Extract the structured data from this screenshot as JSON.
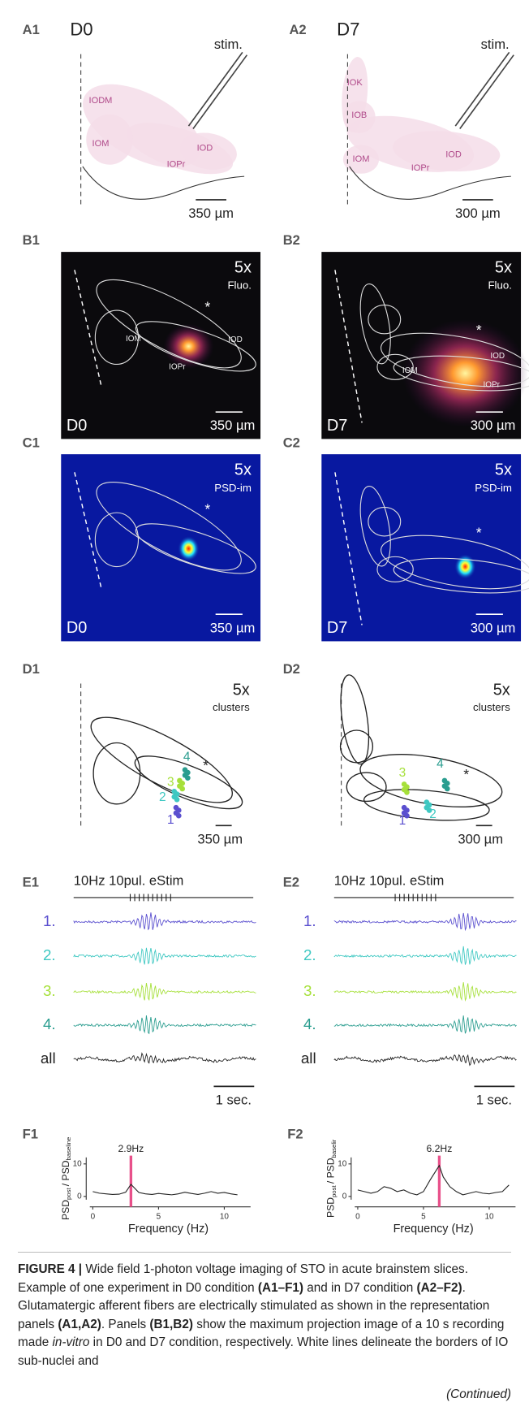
{
  "panels": {
    "A1": {
      "label": "A1",
      "condition": "D0",
      "stim": "stim.",
      "nuclei": [
        "IODM",
        "IOM",
        "IOPr",
        "IOD"
      ],
      "scale": "350 µm"
    },
    "A2": {
      "label": "A2",
      "condition": "D7",
      "stim": "stim.",
      "nuclei": [
        "IOK",
        "IOB",
        "IOM",
        "IOPr",
        "IOD"
      ],
      "scale": "300 µm"
    },
    "B1": {
      "label": "B1",
      "magnification": "5x",
      "mode": "Fluo.",
      "nuclei": [
        "IOM",
        "IOPr",
        "IOD"
      ],
      "star": "*",
      "condition": "D0",
      "scale": "350 µm"
    },
    "B2": {
      "label": "B2",
      "magnification": "5x",
      "mode": "Fluo.",
      "nuclei": [
        "IOM",
        "IOPr",
        "IOD"
      ],
      "star": "*",
      "condition": "D7",
      "scale": "300 µm"
    },
    "C1": {
      "label": "C1",
      "magnification": "5x",
      "mode": "PSD-im",
      "star": "*",
      "condition": "D0",
      "scale": "350 µm"
    },
    "C2": {
      "label": "C2",
      "magnification": "5x",
      "mode": "PSD-im",
      "star": "*",
      "condition": "D7",
      "scale": "300 µm"
    },
    "D1": {
      "label": "D1",
      "magnification": "5x",
      "mode": "clusters",
      "star": "*",
      "clusters": [
        "1",
        "2",
        "3",
        "4"
      ],
      "scale": "350 µm"
    },
    "D2": {
      "label": "D2",
      "magnification": "5x",
      "mode": "clusters",
      "star": "*",
      "clusters": [
        "1",
        "2",
        "3",
        "4"
      ],
      "scale": "300 µm"
    },
    "E1": {
      "label": "E1",
      "stimulus": "10Hz 10pul. eStim",
      "traces": [
        "1.",
        "2.",
        "3.",
        "4.",
        "all"
      ],
      "scale": "1 sec."
    },
    "E2": {
      "label": "E2",
      "stimulus": "10Hz 10pul. eStim",
      "traces": [
        "1.",
        "2.",
        "3.",
        "4.",
        "all"
      ],
      "scale": "1 sec."
    },
    "F1": {
      "label": "F1",
      "type": "line",
      "peak": 2.9,
      "peak_label": "2.9Hz",
      "marker_color": "#e8508a",
      "color": "#222222",
      "ylabel": [
        "PSD",
        "post",
        "/ PSD",
        "baseline"
      ],
      "xlabel": "Frequency (Hz)",
      "x": [
        0,
        0.5,
        1,
        1.5,
        2,
        2.5,
        2.9,
        3.5,
        4,
        4.5,
        5,
        5.5,
        6,
        6.5,
        7,
        7.5,
        8,
        8.5,
        9,
        9.5,
        10,
        10.5,
        11
      ],
      "values": [
        1.5,
        1.0,
        0.8,
        0.6,
        0.7,
        1.3,
        3.7,
        1.2,
        0.8,
        0.6,
        0.9,
        0.7,
        0.5,
        0.8,
        1.3,
        0.9,
        0.6,
        1.0,
        1.5,
        1.0,
        1.2,
        0.8,
        0.5
      ],
      "xlim": [
        -0.5,
        12
      ],
      "ylim": [
        -1,
        12
      ],
      "xticks": [
        0,
        5,
        10
      ],
      "yticks": [
        0,
        10
      ]
    },
    "F2": {
      "label": "F2",
      "type": "line",
      "peak": 6.2,
      "peak_label": "6.2Hz",
      "marker_color": "#e8508a",
      "color": "#222222",
      "ylabel": [
        "PSD",
        "post",
        "/ PSD",
        "baselir"
      ],
      "xlabel": "Frequency (Hz)",
      "x": [
        0,
        0.5,
        1,
        1.5,
        2,
        2.5,
        3,
        3.5,
        4,
        4.5,
        5,
        5.5,
        6.2,
        6.5,
        7,
        7.5,
        8,
        8.5,
        9,
        9.5,
        10,
        10.5,
        11,
        11.5
      ],
      "values": [
        2.0,
        1.5,
        1.0,
        1.5,
        3.0,
        2.5,
        1.5,
        2.0,
        1.0,
        0.5,
        1.5,
        5.0,
        9.5,
        6.0,
        3.0,
        1.5,
        0.5,
        1.0,
        1.5,
        1.0,
        0.8,
        1.2,
        1.5,
        3.5
      ],
      "xlim": [
        -0.5,
        12
      ],
      "ylim": [
        -1,
        12
      ],
      "xticks": [
        0,
        5,
        10
      ],
      "yticks": [
        0,
        10
      ]
    }
  },
  "caption": {
    "parts": [
      "FIGURE 4 |",
      " Wide field 1-photon voltage imaging of STO in acute brainstem slices. Example of one experiment in D0 condition ",
      "(A1–F1)",
      " and in D7 condition ",
      "(A2–F2)",
      ". Glutamatergic afferent fibers are electrically stimulated as shown in the representation panels ",
      "(A1,A2)",
      ". Panels ",
      "(B1,B2)",
      " show the maximum projection image of a 10 s recording made ",
      "in-vitro",
      " in D0 and D7 condition, respectively. White lines delineate the borders of IO sub-nuclei and"
    ],
    "continued": "(Continued)"
  }
}
